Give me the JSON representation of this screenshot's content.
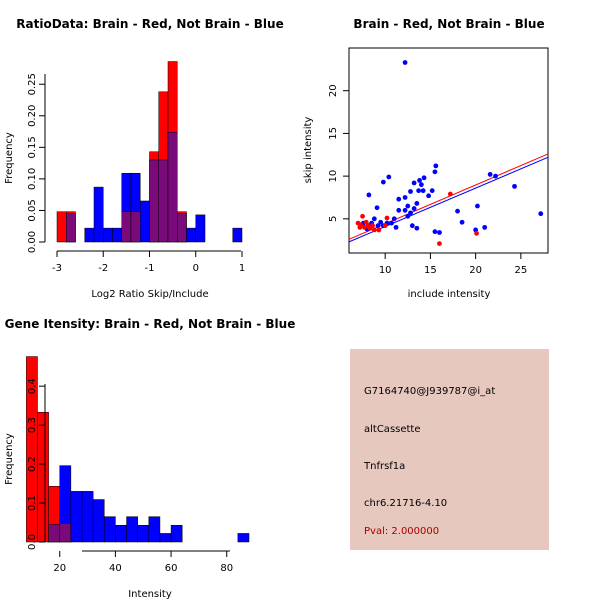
{
  "colors": {
    "red": "#ff0000",
    "blue": "#0000ff",
    "overlap": "#7a0a7a",
    "info_bg": "#e6c8bf",
    "pval": "#aa0000"
  },
  "chart_data": [
    {
      "type": "bar",
      "subtype": "histogram",
      "title": "RatioData: Brain - Red, Not Brain - Blue",
      "xlabel": "Log2 Ratio Skip/Include",
      "ylabel": "Frequency",
      "xlim": [
        -3,
        1
      ],
      "ylim": [
        0,
        0.29
      ],
      "xticks": [
        "-3",
        "-2",
        "-1",
        "0",
        "1"
      ],
      "yticks": [
        "0.00",
        "0.05",
        "0.10",
        "0.15",
        "0.20",
        "0.25"
      ],
      "bin_width": 0.2,
      "series": [
        {
          "name": "Not Brain",
          "color": "blue",
          "bins": [
            {
              "x0": -2.8,
              "value": 0.045
            },
            {
              "x0": -2.4,
              "value": 0.022
            },
            {
              "x0": -2.2,
              "value": 0.087
            },
            {
              "x0": -2.0,
              "value": 0.022
            },
            {
              "x0": -1.8,
              "value": 0.022
            },
            {
              "x0": -1.6,
              "value": 0.109
            },
            {
              "x0": -1.4,
              "value": 0.109
            },
            {
              "x0": -1.2,
              "value": 0.065
            },
            {
              "x0": -1.0,
              "value": 0.13
            },
            {
              "x0": -0.8,
              "value": 0.13
            },
            {
              "x0": -0.6,
              "value": 0.174
            },
            {
              "x0": -0.4,
              "value": 0.045
            },
            {
              "x0": -0.2,
              "value": 0.022
            },
            {
              "x0": 0.0,
              "value": 0.043
            },
            {
              "x0": 0.8,
              "value": 0.022
            }
          ]
        },
        {
          "name": "Brain",
          "color": "red",
          "bins": [
            {
              "x0": -3.0,
              "value": 0.048
            },
            {
              "x0": -2.8,
              "value": 0.048
            },
            {
              "x0": -1.6,
              "value": 0.048
            },
            {
              "x0": -1.4,
              "value": 0.048
            },
            {
              "x0": -1.0,
              "value": 0.143
            },
            {
              "x0": -0.8,
              "value": 0.238
            },
            {
              "x0": -0.6,
              "value": 0.286
            },
            {
              "x0": -0.4,
              "value": 0.048
            }
          ]
        }
      ]
    },
    {
      "type": "scatter",
      "title": "Brain - Red, Not Brain - Blue",
      "xlabel": "include intensity",
      "ylabel": "skip intensity",
      "xlim": [
        6,
        28
      ],
      "ylim": [
        1,
        25
      ],
      "xticks": [
        "10",
        "15",
        "20",
        "25"
      ],
      "yticks": [
        "5",
        "10",
        "15",
        "20"
      ],
      "series": [
        {
          "name": "Not Brain",
          "color": "blue",
          "points": [
            [
              12.2,
              23.3
            ],
            [
              15.6,
              11.2
            ],
            [
              15.5,
              10.5
            ],
            [
              14.3,
              9.8
            ],
            [
              13.8,
              9.5
            ],
            [
              14.0,
              9.0
            ],
            [
              13.2,
              9.2
            ],
            [
              10.4,
              9.9
            ],
            [
              9.8,
              9.3
            ],
            [
              15.2,
              8.3
            ],
            [
              14.8,
              7.7
            ],
            [
              13.7,
              8.3
            ],
            [
              14.2,
              8.3
            ],
            [
              12.8,
              8.2
            ],
            [
              12.2,
              7.5
            ],
            [
              11.5,
              7.3
            ],
            [
              8.2,
              7.8
            ],
            [
              9.1,
              6.3
            ],
            [
              13.5,
              6.8
            ],
            [
              13.2,
              6.2
            ],
            [
              12.5,
              6.5
            ],
            [
              12.2,
              6.0
            ],
            [
              12.8,
              5.7
            ],
            [
              12.5,
              5.3
            ],
            [
              11.5,
              6.0
            ],
            [
              11.0,
              5.0
            ],
            [
              10.7,
              4.5
            ],
            [
              10.2,
              4.5
            ],
            [
              9.8,
              4.2
            ],
            [
              9.5,
              4.6
            ],
            [
              9.2,
              4.2
            ],
            [
              8.8,
              5.0
            ],
            [
              8.5,
              4.5
            ],
            [
              8.2,
              4.2
            ],
            [
              11.2,
              4.0
            ],
            [
              13.0,
              4.2
            ],
            [
              13.5,
              3.9
            ],
            [
              15.5,
              3.5
            ],
            [
              16.0,
              3.4
            ],
            [
              18.0,
              5.9
            ],
            [
              18.5,
              4.6
            ],
            [
              20.0,
              3.7
            ],
            [
              21.0,
              4.0
            ],
            [
              20.2,
              6.5
            ],
            [
              21.6,
              10.2
            ],
            [
              22.2,
              10.0
            ],
            [
              24.3,
              8.8
            ],
            [
              27.2,
              5.6
            ],
            [
              7.6,
              4.5
            ],
            [
              8.0,
              3.8
            ]
          ]
        },
        {
          "name": "Brain",
          "color": "red",
          "points": [
            [
              7.0,
              4.5
            ],
            [
              7.3,
              4.3
            ],
            [
              7.5,
              5.3
            ],
            [
              7.7,
              4.0
            ],
            [
              7.9,
              4.6
            ],
            [
              8.1,
              4.2
            ],
            [
              8.3,
              3.9
            ],
            [
              8.6,
              4.2
            ],
            [
              8.8,
              3.7
            ],
            [
              7.2,
              4.0
            ],
            [
              9.3,
              3.7
            ],
            [
              10.0,
              4.2
            ],
            [
              10.2,
              5.1
            ],
            [
              16.0,
              2.1
            ],
            [
              17.2,
              7.9
            ],
            [
              20.1,
              3.3
            ]
          ]
        }
      ],
      "fit_lines": [
        {
          "color": "red",
          "x": [
            6,
            28
          ],
          "y": [
            2.6,
            12.6
          ]
        },
        {
          "color": "blue",
          "x": [
            6,
            28
          ],
          "y": [
            2.3,
            12.2
          ]
        }
      ]
    },
    {
      "type": "bar",
      "subtype": "histogram",
      "title": "Gene Itensity: Brain - Red, Not Brain - Blue",
      "xlabel": "Intensity",
      "ylabel": "Frequency",
      "xlim": [
        5,
        88
      ],
      "ylim": [
        0,
        0.48
      ],
      "xticks": [
        "20",
        "40",
        "60",
        "80"
      ],
      "yticks": [
        "0.0",
        "0.1",
        "0.2",
        "0.3",
        "0.4"
      ],
      "bin_width": 4,
      "series": [
        {
          "name": "Not Brain",
          "color": "blue",
          "bins": [
            {
              "x0": 16,
              "value": 0.045
            },
            {
              "x0": 20,
              "value": 0.196
            },
            {
              "x0": 24,
              "value": 0.13
            },
            {
              "x0": 28,
              "value": 0.13
            },
            {
              "x0": 32,
              "value": 0.109
            },
            {
              "x0": 36,
              "value": 0.065
            },
            {
              "x0": 40,
              "value": 0.043
            },
            {
              "x0": 44,
              "value": 0.065
            },
            {
              "x0": 48,
              "value": 0.043
            },
            {
              "x0": 52,
              "value": 0.065
            },
            {
              "x0": 56,
              "value": 0.022
            },
            {
              "x0": 60,
              "value": 0.043
            },
            {
              "x0": 84,
              "value": 0.022
            }
          ]
        },
        {
          "name": "Brain",
          "color": "red",
          "bins": [
            {
              "x0": 8,
              "value": 0.476
            },
            {
              "x0": 12,
              "value": 0.333
            },
            {
              "x0": 16,
              "value": 0.143
            },
            {
              "x0": 20,
              "value": 0.048
            }
          ]
        }
      ]
    }
  ],
  "info": {
    "probe_id": "G7164740@J939787@i_at",
    "event_type": "altCassette",
    "gene": "Tnfrsf1a",
    "location": "chr6.21716-4.10",
    "pval": "Pval: 2.000000"
  }
}
